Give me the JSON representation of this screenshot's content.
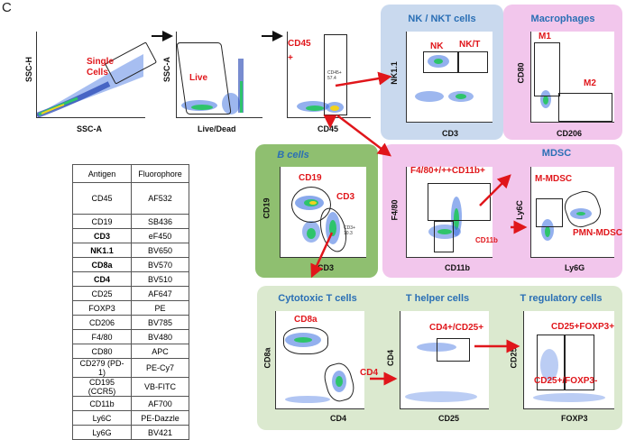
{
  "panel_label": "C",
  "colors": {
    "nk_bg": "#c9d9ee",
    "macro_bg": "#f2c6ec",
    "bcell_bg": "#8fbf70",
    "myeloid_bg": "#f2c6ec",
    "tcell_bg": "#dbe9cf",
    "region_title": "#2a6fb5",
    "gate_label": "#e0161b",
    "arrow": "#e0161b"
  },
  "plots": {
    "single_cells": {
      "xlabel": "SSC-A",
      "ylabel": "SSC-H",
      "label": "Single Cells"
    },
    "live": {
      "xlabel": "Live/Dead",
      "ylabel": "SSC-A",
      "label": "Live"
    },
    "cd45": {
      "xlabel": "CD45",
      "ylabel": "",
      "label": "CD45 +",
      "inner": "CD45+ 57.4"
    },
    "nk": {
      "xlabel": "CD3",
      "ylabel": "NK1.1",
      "gate1": "NK",
      "gate2": "NK/T"
    },
    "macrophages": {
      "xlabel": "CD206",
      "ylabel": "CD80",
      "gate1": "M1",
      "gate2": "M2"
    },
    "bcells": {
      "xlabel": "CD3",
      "ylabel": "CD19",
      "gate1": "CD19",
      "gate2": "CD3",
      "inner": "CD3+ 10.3"
    },
    "myeloid": {
      "xlabel": "CD11b",
      "ylabel": "F4/80",
      "gate1": "F4/80+/++CD11b+",
      "gate2": "CD11b"
    },
    "mdsc": {
      "xlabel": "Ly6G",
      "ylabel": "Ly6C",
      "gate1": "M-MDSC",
      "gate2": "PMN-MDSC"
    },
    "cytotoxic": {
      "xlabel": "CD4",
      "ylabel": "CD8a",
      "gate1": "CD8a",
      "gate2": "CD4"
    },
    "thelper": {
      "xlabel": "CD25",
      "ylabel": "CD4",
      "gate1": "CD4+/CD25+"
    },
    "treg": {
      "xlabel": "FOXP3",
      "ylabel": "CD25",
      "gate1": "CD25+FOXP3+",
      "gate2": "CD25+/FOXP3-"
    }
  },
  "regions": {
    "nk": "NK / NKT cells",
    "macrophages": "Macrophages",
    "bcells": "B cells",
    "mdsc": "MDSC",
    "cytotoxic": "Cytotoxic T cells",
    "thelper": "T helper cells",
    "treg": "T regulatory cells"
  },
  "table": {
    "headers": [
      "Antigen",
      "Fluorophore"
    ],
    "rows": [
      {
        "antigen": "CD45",
        "fluorophore": "AF532"
      },
      {
        "antigen": "CD19",
        "fluorophore": "SB436"
      },
      {
        "antigen": "CD3",
        "fluorophore": "eF450"
      },
      {
        "antigen": "NK1.1",
        "fluorophore": "BV650"
      },
      {
        "antigen": "CD8a",
        "fluorophore": "BV570"
      },
      {
        "antigen": "CD4",
        "fluorophore": "BV510"
      },
      {
        "antigen": "CD25",
        "fluorophore": "AF647"
      },
      {
        "antigen": "FOXP3",
        "fluorophore": "PE"
      },
      {
        "antigen": "CD206",
        "fluorophore": "BV785"
      },
      {
        "antigen": "F4/80",
        "fluorophore": "BV480"
      },
      {
        "antigen": "CD80",
        "fluorophore": "APC"
      },
      {
        "antigen": "CD279 (PD-1)",
        "fluorophore": "PE-Cy7"
      },
      {
        "antigen": "CD195 (CCR5)",
        "fluorophore": "VB-FITC"
      },
      {
        "antigen": "CD11b",
        "fluorophore": "AF700"
      },
      {
        "antigen": "Ly6C",
        "fluorophore": "PE-Dazzle"
      },
      {
        "antigen": "Ly6G",
        "fluorophore": "BV421"
      }
    ]
  }
}
